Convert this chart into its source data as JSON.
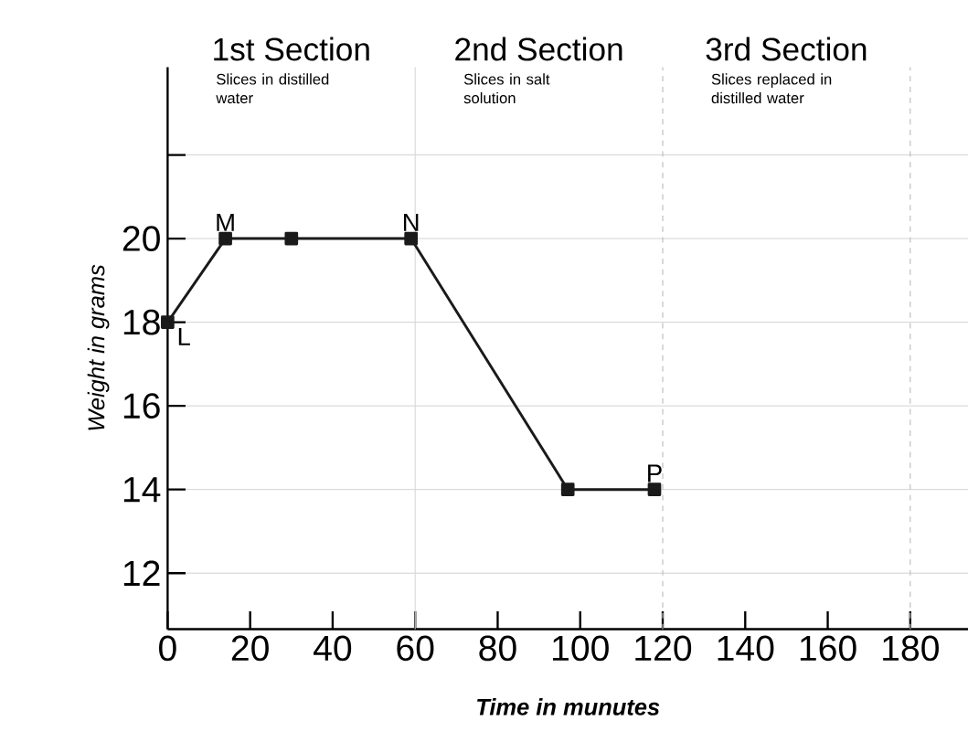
{
  "chart_data": {
    "type": "line",
    "xlabel": "Time in munutes",
    "ylabel": "Weight in grams",
    "x": [
      0,
      14,
      30,
      59,
      97,
      118
    ],
    "values": [
      18,
      20,
      20,
      20,
      14,
      14
    ],
    "color": "#1a1a1a",
    "marker": "square",
    "line_style": "solid",
    "xlim": [
      0,
      194
    ],
    "ylim": [
      10.66,
      24.1
    ],
    "xticks": [
      0,
      20,
      40,
      60,
      80,
      100,
      120,
      140,
      160,
      180
    ],
    "yticks": [
      12,
      14,
      16,
      18,
      20,
      {
        "value": 22,
        "label": null
      }
    ],
    "grid": "y",
    "ref_lines": [
      {
        "axis": "x",
        "value": 60,
        "color": "#d9d9d9",
        "line_style": "solid"
      },
      {
        "axis": "x",
        "value": 120,
        "color": "#bfbfbf",
        "line_style": "dashed"
      },
      {
        "axis": "x",
        "value": 180,
        "color": "#bfbfbf",
        "line_style": "dashed"
      }
    ],
    "annotations": [
      "1st Section",
      "Slices in distilled water",
      "2nd Section",
      "Slices in salt solution",
      "3rd Section",
      "Slices replaced in distilled water",
      {
        "text": "L",
        "x": 0,
        "y": 18
      },
      {
        "text": "M",
        "x": 14,
        "y": 20
      },
      {
        "text": "N",
        "x": 59,
        "y": 20
      },
      {
        "text": "P",
        "x": 118,
        "y": 14
      }
    ]
  }
}
